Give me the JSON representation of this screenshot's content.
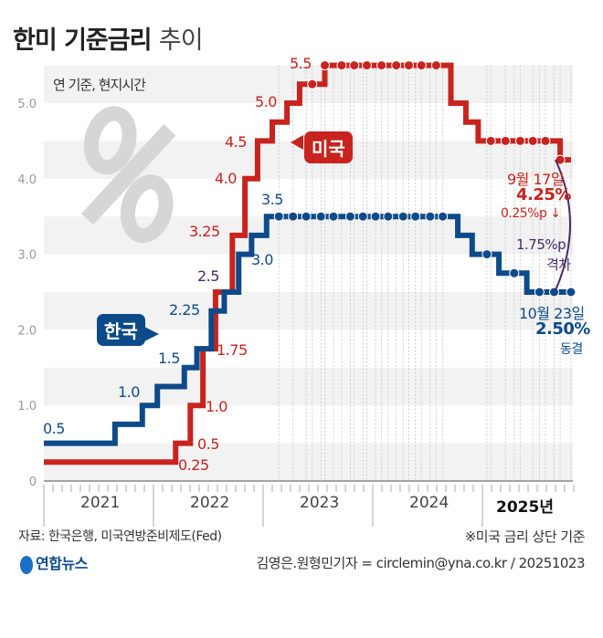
{
  "title": {
    "bold": "한미 기준금리",
    "light": "추이"
  },
  "note": "연 기준, 현지시간",
  "chart_data": {
    "type": "line",
    "step": true,
    "ylim": [
      0,
      5.5
    ],
    "yticks": [
      "0",
      "1.0",
      "2.0",
      "3.0",
      "4.0",
      "5.0"
    ],
    "xticks": [
      "2021",
      "2022",
      "2023",
      "2024",
      "2025년"
    ],
    "grid": "horizontal bands",
    "series": [
      {
        "name": "미국",
        "color": "#c8231e",
        "changes": [
          [
            "2021-01-01",
            0.25
          ],
          [
            "2022-03-16",
            0.5
          ],
          [
            "2022-05-04",
            1.0
          ],
          [
            "2022-06-15",
            1.75
          ],
          [
            "2022-07-27",
            2.5
          ],
          [
            "2022-09-21",
            3.25
          ],
          [
            "2022-11-02",
            4.0
          ],
          [
            "2022-12-14",
            4.5
          ],
          [
            "2023-02-01",
            4.75
          ],
          [
            "2023-03-22",
            5.0
          ],
          [
            "2023-05-03",
            5.25
          ],
          [
            "2023-07-26",
            5.5
          ],
          [
            "2024-09-18",
            5.0
          ],
          [
            "2024-11-07",
            4.75
          ],
          [
            "2024-12-18",
            4.5
          ],
          [
            "2025-09-17",
            4.25
          ],
          [
            "2025-10-23",
            4.25
          ]
        ],
        "hold_dates": [
          "2023-06-14",
          "2023-07-26",
          "2023-09-20",
          "2023-11-01",
          "2023-12-13",
          "2024-01-31",
          "2024-03-20",
          "2024-05-01",
          "2024-06-12",
          "2024-07-31",
          "2025-01-29",
          "2025-03-19",
          "2025-05-07",
          "2025-06-18",
          "2025-07-30",
          "2025-09-17"
        ]
      },
      {
        "name": "한국",
        "color": "#0d4a8a",
        "changes": [
          [
            "2021-01-01",
            0.5
          ],
          [
            "2021-08-26",
            0.75
          ],
          [
            "2021-11-25",
            1.0
          ],
          [
            "2022-01-14",
            1.25
          ],
          [
            "2022-04-14",
            1.5
          ],
          [
            "2022-05-26",
            1.75
          ],
          [
            "2022-07-13",
            2.25
          ],
          [
            "2022-08-25",
            2.5
          ],
          [
            "2022-10-12",
            3.0
          ],
          [
            "2022-11-24",
            3.25
          ],
          [
            "2023-01-13",
            3.5
          ],
          [
            "2024-10-11",
            3.25
          ],
          [
            "2024-11-28",
            3.0
          ],
          [
            "2025-02-25",
            2.75
          ],
          [
            "2025-05-29",
            2.5
          ],
          [
            "2025-10-23",
            2.5
          ]
        ],
        "hold_dates": [
          "2023-02-23",
          "2023-04-11",
          "2023-05-25",
          "2023-07-13",
          "2023-08-24",
          "2023-10-19",
          "2023-11-30",
          "2024-01-11",
          "2024-02-22",
          "2024-04-12",
          "2024-05-23",
          "2024-07-11",
          "2024-08-22",
          "2025-01-16",
          "2025-04-17",
          "2025-07-10",
          "2025-08-28",
          "2025-10-23"
        ]
      }
    ],
    "data_labels": {
      "us": [
        "0.25",
        "0.5",
        "1.0",
        "1.75",
        "3.25",
        "4.0",
        "4.5",
        "5.0",
        "5.5"
      ],
      "kr": [
        "0.5",
        "1.0",
        "1.5",
        "2.25",
        "3.0",
        "3.5"
      ],
      "shared": "2.5"
    },
    "annotations": {
      "us_date": "9월 17일",
      "us_rate": "4.25%",
      "us_change": "0.25%p ↓",
      "gap": "1.75%p",
      "gap_label": "격차",
      "kr_date": "10월 23일",
      "kr_rate": "2.50%",
      "kr_status": "동결"
    }
  },
  "footer": {
    "source": "자료: 한국은행, 미국연방준비제도(Fed)",
    "footnote": "※미국 금리 상단 기준",
    "logo": "연합뉴스",
    "credit": "김영은.원형민기자 = circlemin@yna.co.kr / 20251023"
  }
}
